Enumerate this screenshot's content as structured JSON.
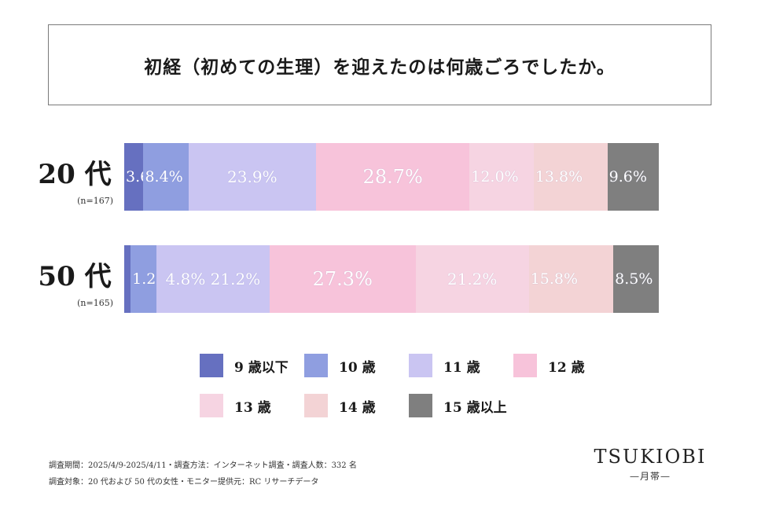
{
  "title": "初経（初めての生理）を迎えたのは何歳ごろでしたか。",
  "chart_data": {
    "type": "bar",
    "orientation": "horizontal",
    "stacked": "100%",
    "categories": [
      "20 代",
      "50 代"
    ],
    "sample_sizes": [
      "(n=167)",
      "(n=165)"
    ],
    "series": [
      {
        "name": "9 歳以下",
        "color": "#6670c0",
        "values": [
          3.6,
          1.2
        ],
        "labels": [
          "3.6%",
          ""
        ]
      },
      {
        "name": "10 歳",
        "color": "#8f9ee0",
        "values": [
          8.4,
          4.8
        ],
        "labels": [
          "8.4%",
          "1.2%"
        ]
      },
      {
        "name": "11 歳",
        "color": "#cac5f2",
        "values": [
          23.9,
          21.2
        ],
        "labels": [
          "23.9%",
          "4.8%  21.2%"
        ]
      },
      {
        "name": "12 歳",
        "color": "#f7c3da",
        "values": [
          28.7,
          27.3
        ],
        "labels": [
          "28.7%",
          "27.3%"
        ]
      },
      {
        "name": "13 歳",
        "color": "#f6d4e2",
        "values": [
          12.0,
          21.2
        ],
        "labels": [
          "12.0%",
          "21.2%"
        ]
      },
      {
        "name": "14 歳",
        "color": "#f3d3d5",
        "values": [
          13.8,
          15.8
        ],
        "labels": [
          "13.8%",
          "15.8%"
        ]
      },
      {
        "name": "15 歳以上",
        "color": "#7f7f7f",
        "values": [
          9.6,
          8.5
        ],
        "labels": [
          "9.6%",
          "8.5%"
        ]
      }
    ],
    "legend_position": "bottom"
  },
  "footer": {
    "line1": "調査期間：2025/4/9-2025/4/11・調査方法：インターネット調査・調査人数：332 名",
    "line2": "調査対象：20 代および 50 代の女性・モニター提供元：RC リサーチデータ"
  },
  "logo": {
    "main": "TSUKIOBI",
    "sub": "—月帯—"
  }
}
